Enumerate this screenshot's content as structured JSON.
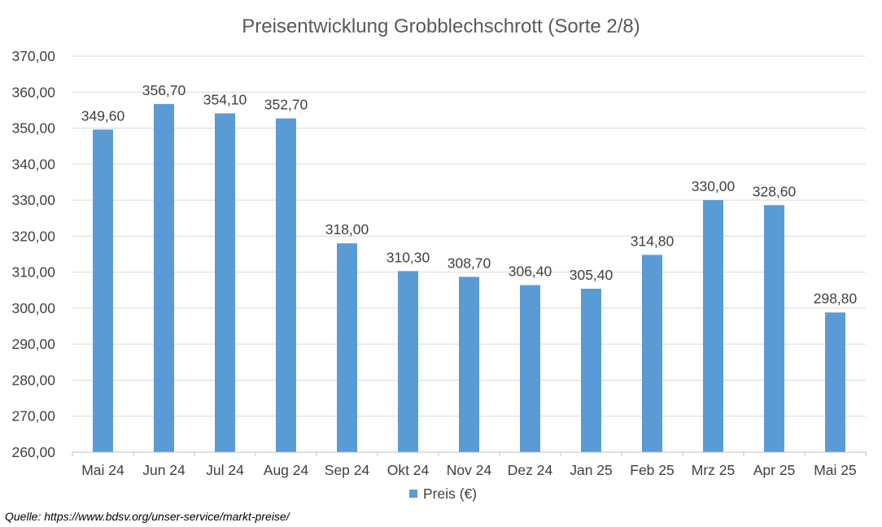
{
  "chart_data": {
    "type": "bar",
    "title": "Preisentwicklung Grobblechschrott (Sorte 2/8)",
    "categories": [
      "Mai 24",
      "Jun 24",
      "Jul 24",
      "Aug 24",
      "Sep 24",
      "Okt 24",
      "Nov 24",
      "Dez 24",
      "Jan 25",
      "Feb 25",
      "Mrz 25",
      "Apr 25",
      "Mai 25"
    ],
    "series": [
      {
        "name": "Preis (€)",
        "color": "#5b9bd5",
        "values": [
          349.6,
          356.7,
          354.1,
          352.7,
          318.0,
          310.3,
          308.7,
          306.4,
          305.4,
          314.8,
          330.0,
          328.6,
          298.8
        ],
        "data_labels": [
          "349,60",
          "356,70",
          "354,10",
          "352,70",
          "318,00",
          "310,30",
          "308,70",
          "306,40",
          "305,40",
          "314,80",
          "330,00",
          "328,60",
          "298,80"
        ]
      }
    ],
    "ylim": [
      260,
      370
    ],
    "y_ticks": [
      "260,00",
      "270,00",
      "280,00",
      "290,00",
      "300,00",
      "310,00",
      "320,00",
      "330,00",
      "340,00",
      "350,00",
      "360,00",
      "370,00"
    ],
    "xlabel": "",
    "ylabel": "",
    "grid": true,
    "legend_position": "bottom"
  },
  "source_note": "Quelle: https://www.bdsv.org/unser-service/markt-preise/"
}
